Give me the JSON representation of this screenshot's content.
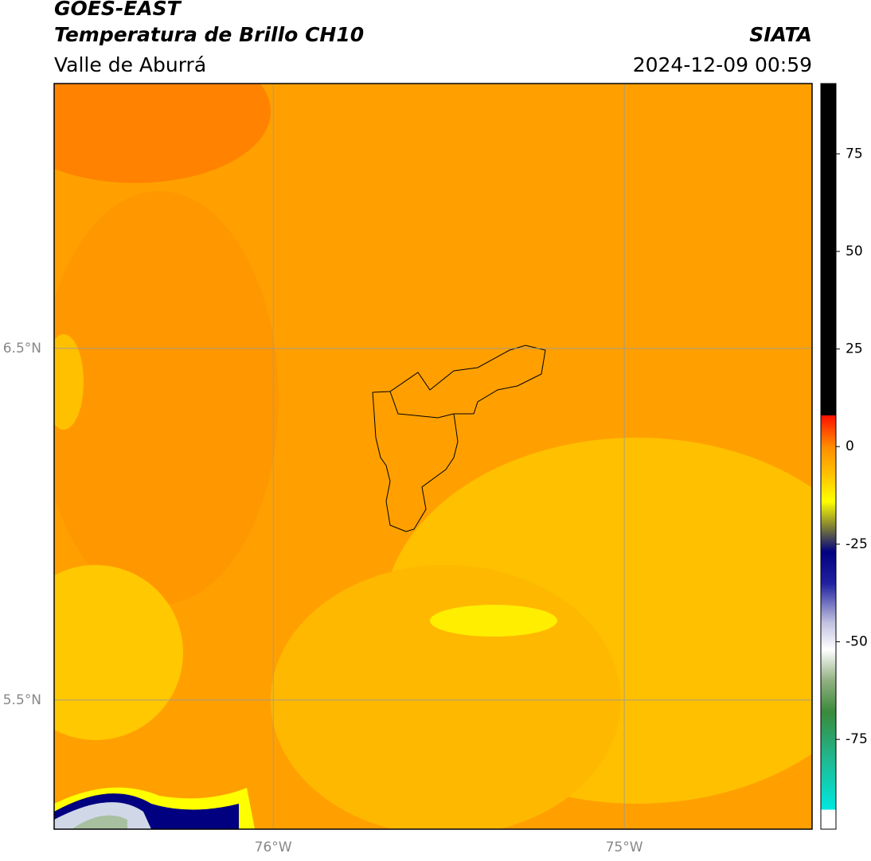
{
  "header": {
    "title": "GOES-EAST",
    "subtitle": "Temperatura de Brillo CH10",
    "source": "SIATA",
    "region": "Valle de Aburrá",
    "datetime": "2024-12-09 00:59"
  },
  "map": {
    "lon_range": [
      -76.624,
      -74.465
    ],
    "lat_range": [
      5.133,
      7.253
    ],
    "lon_ticks": [
      {
        "value": -76,
        "label": "76°W"
      },
      {
        "value": -75,
        "label": "75°W"
      }
    ],
    "lat_ticks": [
      {
        "value": 6.5,
        "label": "6.5°N"
      },
      {
        "value": 5.5,
        "label": "5.5°N"
      }
    ],
    "grid": true
  },
  "colorbar": {
    "lim": [
      -98,
      93
    ],
    "ticks": [
      75,
      50,
      25,
      0,
      -25,
      -50,
      -75
    ],
    "stops": [
      {
        "value": -98,
        "color": "#ffffff"
      },
      {
        "value": -93,
        "color": "#ffffff"
      },
      {
        "value": -93,
        "color": "#00e8e0"
      },
      {
        "value": -80,
        "color": "#20b890"
      },
      {
        "value": -68,
        "color": "#3a8a3a"
      },
      {
        "value": -60,
        "color": "#90b080"
      },
      {
        "value": -52,
        "color": "#ffffff"
      },
      {
        "value": -45,
        "color": "#c0c0e0"
      },
      {
        "value": -35,
        "color": "#2020a0"
      },
      {
        "value": -27,
        "color": "#000080"
      },
      {
        "value": -20,
        "color": "#8a8a30"
      },
      {
        "value": -14,
        "color": "#ffff00"
      },
      {
        "value": -7,
        "color": "#ffc000"
      },
      {
        "value": 0,
        "color": "#ff8c00"
      },
      {
        "value": 8,
        "color": "#ff1000"
      },
      {
        "value": 8,
        "color": "#000000"
      },
      {
        "value": 93,
        "color": "#000000"
      }
    ]
  }
}
